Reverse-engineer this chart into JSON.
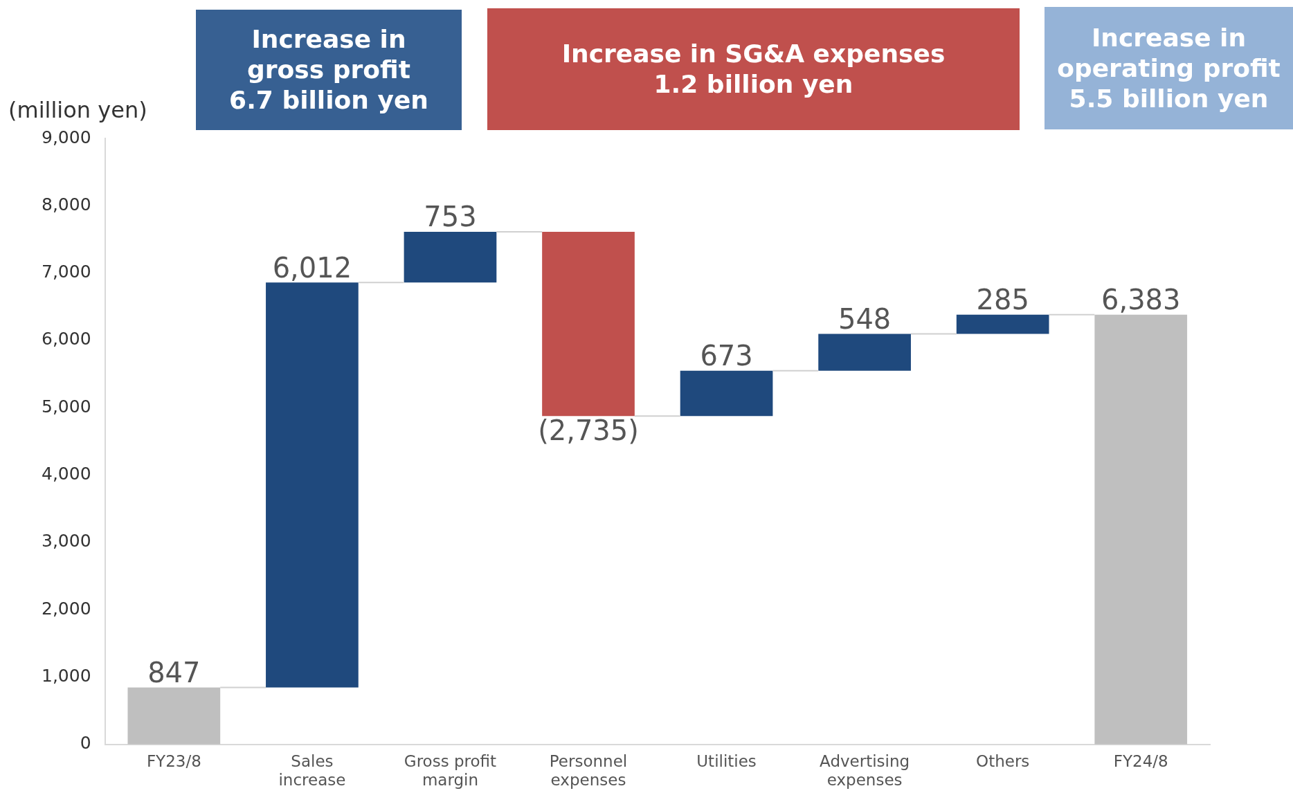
{
  "chart_data": {
    "type": "bar",
    "ylabel": "(million yen)",
    "annotations": [
      "Increase in\ngross profit\n6.7 billion yen",
      "Increase in SG&A expenses\n1.2 billion yen",
      "Increase in\noperating profit\n5.5 billion yen"
    ],
    "categories": [
      "FY23/8",
      "Sales increase",
      "Gross profit margin",
      "Personnel expenses",
      "Utilities",
      "Advertising expenses",
      "Others",
      "FY24/8"
    ],
    "base": [
      0,
      847,
      6859,
      7612,
      4877,
      5550,
      6098,
      0
    ],
    "values": [
      847,
      6012,
      753,
      -2735,
      673,
      548,
      285,
      6383
    ],
    "value_labels": [
      "847",
      "6,012",
      "753",
      "(2,735)",
      "673",
      "548",
      "285",
      "6,383"
    ],
    "colors": [
      "#bfbfbf",
      "#1f497d",
      "#1f497d",
      "#c0504d",
      "#1f497d",
      "#1f497d",
      "#1f497d",
      "#bfbfbf"
    ],
    "ylim": [
      0,
      9000
    ],
    "yticks": [
      0,
      {
        "value": 1000,
        "label": "1,000"
      },
      {
        "value": 2000,
        "label": "2,000"
      },
      {
        "value": 3000,
        "label": "3,000"
      },
      {
        "value": 4000,
        "label": "4,000"
      },
      {
        "value": 5000,
        "label": "5,000"
      },
      {
        "value": 6000,
        "label": "6,000"
      },
      {
        "value": 7000,
        "label": "7,000"
      },
      {
        "value": 8000,
        "label": "8,000"
      },
      {
        "value": 9000,
        "label": "9,000"
      }
    ],
    "grid": false,
    "legend": false
  }
}
